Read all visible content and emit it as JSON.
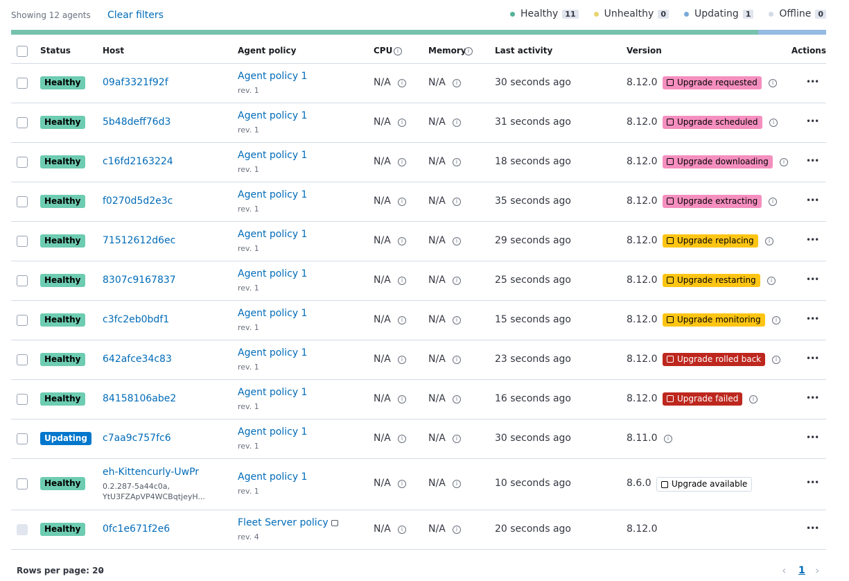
{
  "toolbar": {
    "showing": "Showing 12 agents",
    "clear_filters": "Clear filters",
    "statuses": [
      {
        "label": "Healthy",
        "count": 11,
        "color": "#54b399"
      },
      {
        "label": "Unhealthy",
        "count": 0,
        "color": "#e7d56f"
      },
      {
        "label": "Updating",
        "count": 1,
        "color": "#79aad9"
      },
      {
        "label": "Offline",
        "count": 0,
        "color": "#d3dae6"
      }
    ]
  },
  "columns": [
    "Status",
    "Host",
    "Agent policy",
    "CPU",
    "Memory",
    "Last activity",
    "Version",
    "Actions"
  ],
  "rows": [
    {
      "status": "Healthy",
      "host": "09af3321f92f",
      "policy": "Agent policy 1",
      "rev": "rev. 1",
      "cpu": "N/A",
      "memory": "N/A",
      "last_activity": "30 seconds ago",
      "version": "8.12.0",
      "upgrade": {
        "label": "Upgrade requested",
        "color": "#f58fbf"
      }
    },
    {
      "status": "Healthy",
      "host": "5b48deff76d3",
      "policy": "Agent policy 1",
      "rev": "rev. 1",
      "cpu": "N/A",
      "memory": "N/A",
      "last_activity": "31 seconds ago",
      "version": "8.12.0",
      "upgrade": {
        "label": "Upgrade scheduled",
        "color": "#f58fbf"
      }
    },
    {
      "status": "Healthy",
      "host": "c16fd2163224",
      "policy": "Agent policy 1",
      "rev": "rev. 1",
      "cpu": "N/A",
      "memory": "N/A",
      "last_activity": "18 seconds ago",
      "version": "8.12.0",
      "upgrade": {
        "label": "Upgrade downloading",
        "color": "#f58fbf"
      }
    },
    {
      "status": "Healthy",
      "host": "f0270d5d2e3c",
      "policy": "Agent policy 1",
      "rev": "rev. 1",
      "cpu": "N/A",
      "memory": "N/A",
      "last_activity": "35 seconds ago",
      "version": "8.12.0",
      "upgrade": {
        "label": "Upgrade extracting",
        "color": "#f58fbf"
      }
    },
    {
      "status": "Healthy",
      "host": "71512612d6ec",
      "policy": "Agent policy 1",
      "rev": "rev. 1",
      "cpu": "N/A",
      "memory": "N/A",
      "last_activity": "29 seconds ago",
      "version": "8.12.0",
      "upgrade": {
        "label": "Upgrade replacing",
        "color": "#fec514"
      }
    },
    {
      "status": "Healthy",
      "host": "8307c9167837",
      "policy": "Agent policy 1",
      "rev": "rev. 1",
      "cpu": "N/A",
      "memory": "N/A",
      "last_activity": "25 seconds ago",
      "version": "8.12.0",
      "upgrade": {
        "label": "Upgrade restarting",
        "color": "#fec514"
      }
    },
    {
      "status": "Healthy",
      "host": "c3fc2eb0bdf1",
      "policy": "Agent policy 1",
      "rev": "rev. 1",
      "cpu": "N/A",
      "memory": "N/A",
      "last_activity": "15 seconds ago",
      "version": "8.12.0",
      "upgrade": {
        "label": "Upgrade monitoring",
        "color": "#fec514"
      }
    },
    {
      "status": "Healthy",
      "host": "642afce34c83",
      "policy": "Agent policy 1",
      "rev": "rev. 1",
      "cpu": "N/A",
      "memory": "N/A",
      "last_activity": "23 seconds ago",
      "version": "8.12.0",
      "upgrade": {
        "label": "Upgrade rolled back",
        "color": "#bd271e"
      }
    },
    {
      "status": "Healthy",
      "host": "84158106abe2",
      "policy": "Agent policy 1",
      "rev": "rev. 1",
      "cpu": "N/A",
      "memory": "N/A",
      "last_activity": "16 seconds ago",
      "version": "8.12.0",
      "upgrade": {
        "label": "Upgrade failed",
        "color": "#bd271e"
      }
    },
    {
      "status": "Updating",
      "host": "c7aa9c757fc6",
      "policy": "Agent policy 1",
      "rev": "rev. 1",
      "cpu": "N/A",
      "memory": "N/A",
      "last_activity": "30 seconds ago",
      "version": "8.11.0"
    },
    {
      "status": "Healthy",
      "host": "eh-Kittencurly-UwPr",
      "host_detail": [
        "0.2.287-5a44c0a,",
        "YtU3FZApVP4WCBqtjeyH..."
      ],
      "policy": "Agent policy 1",
      "rev": "rev. 1",
      "cpu": "N/A",
      "memory": "N/A",
      "last_activity": "10 seconds ago",
      "version": "8.6.0",
      "upgrade": {
        "label": "Upgrade available",
        "color": "#ffffff"
      }
    },
    {
      "status": "Healthy",
      "host": "0fc1e671f2e6",
      "policy": "Fleet Server policy",
      "rev": "rev. 4",
      "cpu": "N/A",
      "memory": "N/A",
      "last_activity": "20 seconds ago",
      "version": "8.12.0",
      "locked": true
    }
  ],
  "pagination": {
    "rows_per_page": "Rows per page: 20",
    "page": "1"
  }
}
